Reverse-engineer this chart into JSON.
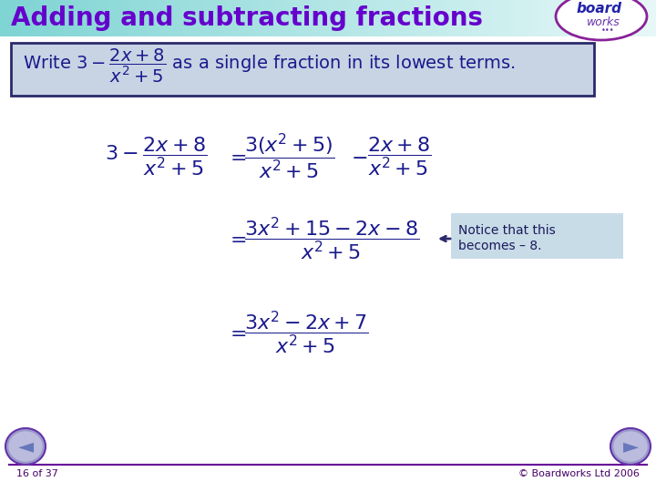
{
  "title": "Adding and subtracting fractions",
  "title_color": "#6600cc",
  "title_bg_gradient_left": "#a0e8e8",
  "title_bg_gradient_right": "#e8f8f8",
  "main_bg_color": "#ffffff",
  "slide_bg_color": "#c8dce8",
  "box_bg_color": "#c8d4e4",
  "box_border_color": "#2a2a6a",
  "notice_bg_color": "#c8dce8",
  "math_color": "#1a1a8c",
  "notice_color": "#1a1a5a",
  "footer_color": "#440066",
  "footer_line_color": "#660099",
  "nav_circle_color": "#8888bb",
  "page_text": "16 of 37",
  "copyright_text": "© Boardworks Ltd 2006"
}
